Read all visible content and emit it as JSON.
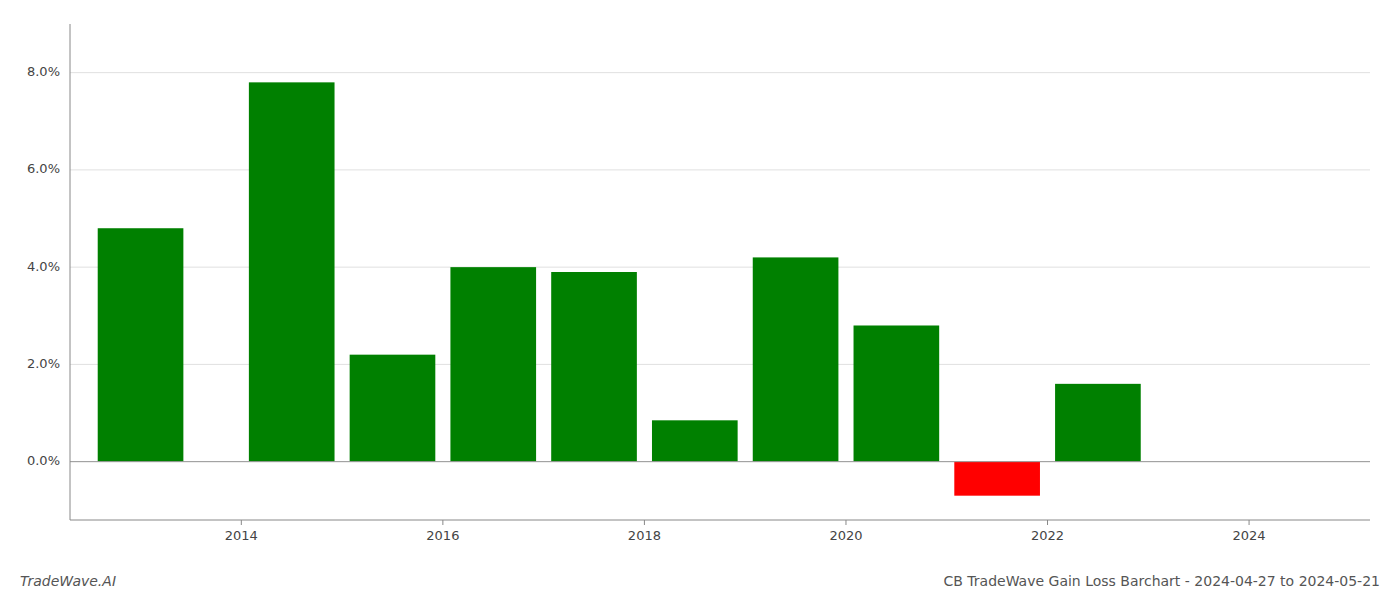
{
  "chart_data": {
    "type": "bar",
    "title": "CB TradeWave Gain Loss Barchart - 2024-04-27 to 2024-05-21",
    "annotations": [
      "TradeWave.AI"
    ],
    "x": [
      2013.0,
      2014.5,
      2015.5,
      2016.5,
      2017.5,
      2018.5,
      2019.5,
      2020.5,
      2021.5,
      2022.5
    ],
    "values": [
      0.048,
      0.078,
      0.022,
      0.04,
      0.039,
      0.0085,
      0.042,
      0.028,
      -0.007,
      0.016
    ],
    "colors": [
      "#008000",
      "#008000",
      "#008000",
      "#008000",
      "#008000",
      "#008000",
      "#008000",
      "#008000",
      "#ff0000",
      "#008000"
    ],
    "xlim": [
      2012.3,
      2025.2
    ],
    "xticks": [
      2014,
      2016,
      2018,
      2020,
      2022,
      2024
    ],
    "ylim": [
      -0.012,
      0.09
    ],
    "yticks": [
      {
        "value": 0.0,
        "label": "0.0%"
      },
      {
        "value": 0.02,
        "label": "2.0%"
      },
      {
        "value": 0.04,
        "label": "4.0%"
      },
      {
        "value": 0.06,
        "label": "6.0%"
      },
      {
        "value": 0.08,
        "label": "8.0%"
      }
    ],
    "grid": true
  }
}
